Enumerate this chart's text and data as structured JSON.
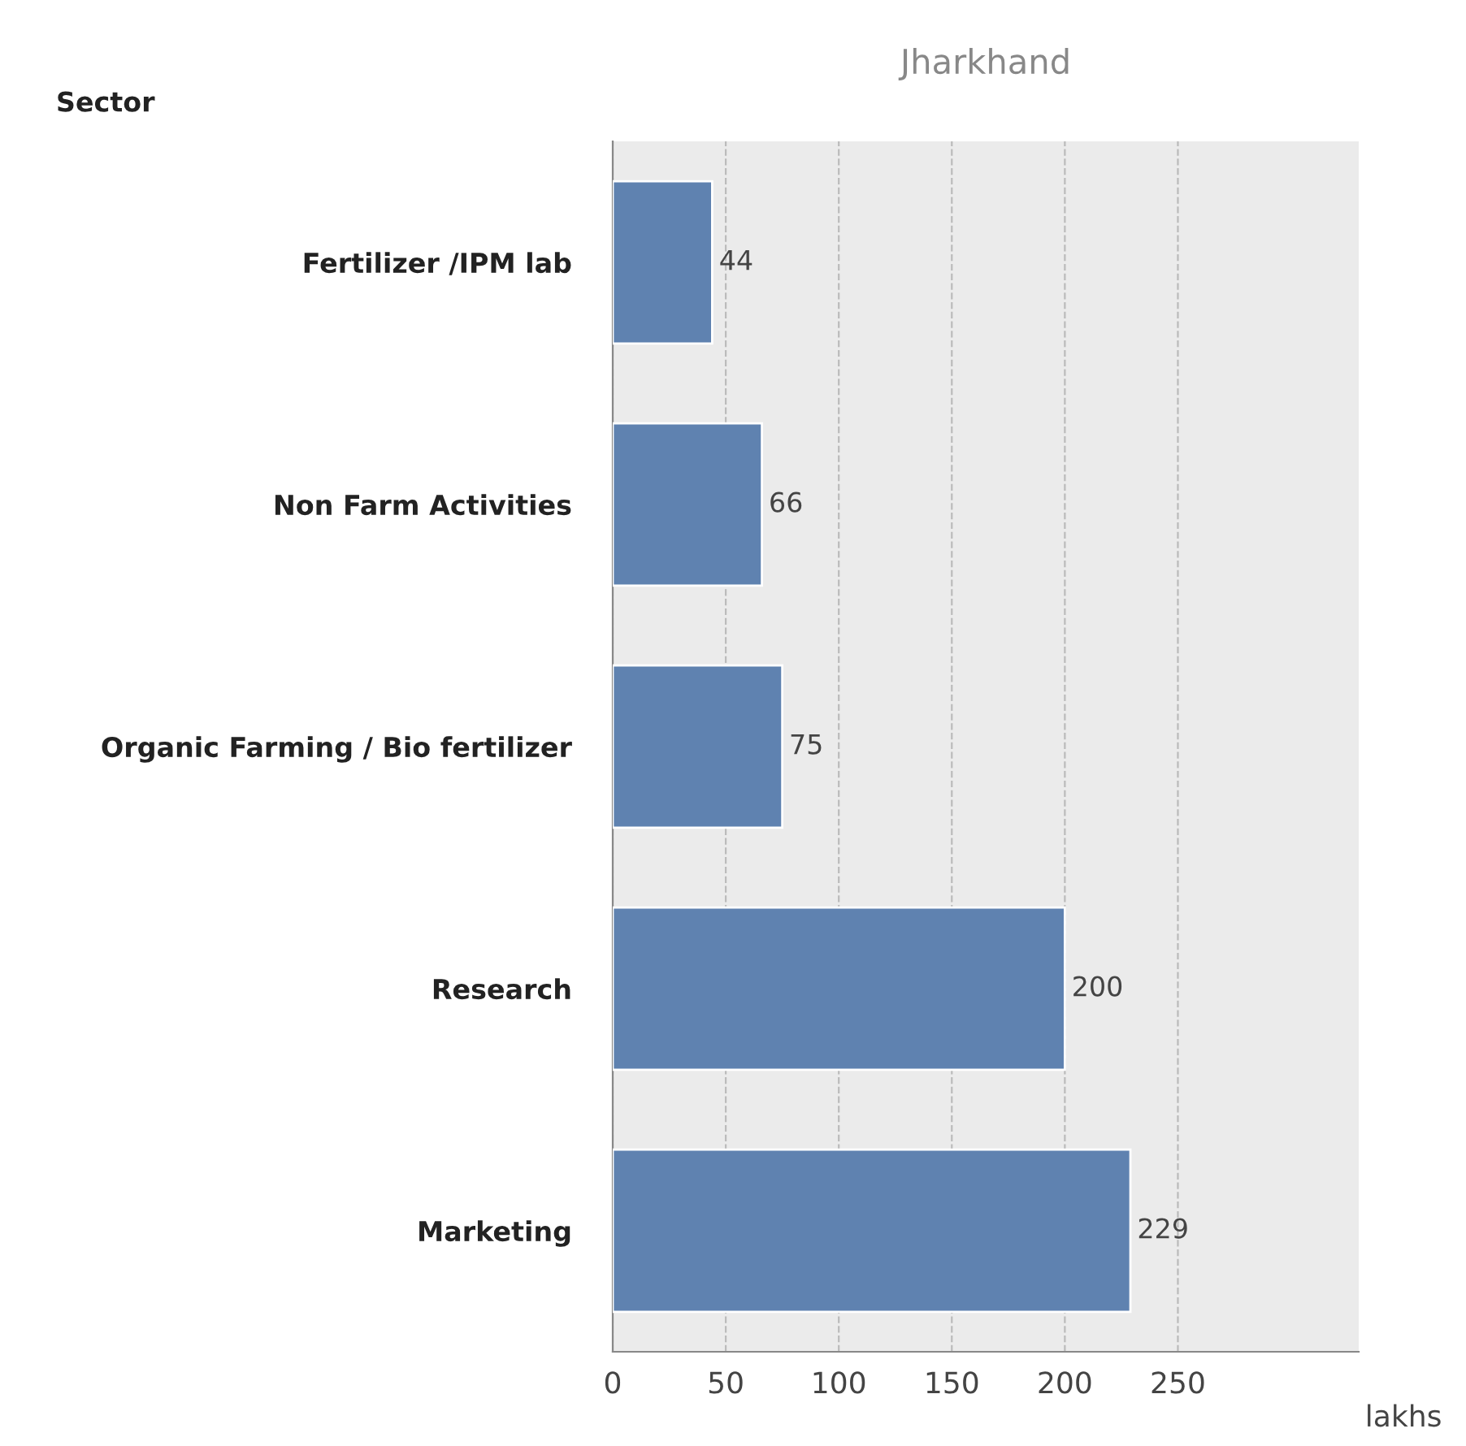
{
  "chart_data": {
    "type": "bar",
    "orientation": "horizontal",
    "title": "Jharkhand",
    "xlabel": "lakhs",
    "ylabel": "Sector",
    "categories": [
      "Fertilizer /IPM lab",
      "Non Farm Activities",
      "Organic Farming / Bio fertilizer",
      "Research",
      "Marketing"
    ],
    "values": [
      44,
      66,
      75,
      200,
      229
    ],
    "color": "#5f82b0",
    "xlim": [
      0,
      330
    ],
    "xticks": [
      0,
      50,
      100,
      150,
      200,
      250
    ],
    "grid": "x",
    "data_labels": true,
    "legend": false
  }
}
